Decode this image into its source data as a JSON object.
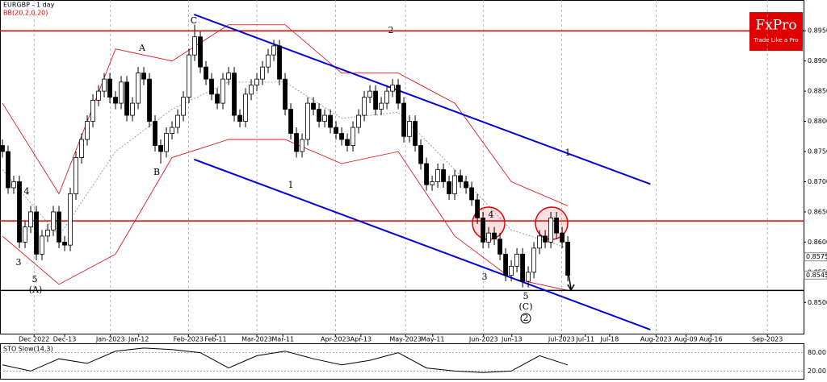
{
  "chart_data": {
    "type": "candlestick",
    "title": "EURGBP - 1 day",
    "subtitle": "BB(20,2,0,20)",
    "ohlc": [
      [
        0.876,
        0.877,
        0.874,
        0.875
      ],
      [
        0.875,
        0.876,
        0.868,
        0.869
      ],
      [
        0.869,
        0.871,
        0.868,
        0.87
      ],
      [
        0.87,
        0.871,
        0.859,
        0.86
      ],
      [
        0.86,
        0.8635,
        0.859,
        0.8625
      ],
      [
        0.8625,
        0.866,
        0.8615,
        0.865
      ],
      [
        0.865,
        0.866,
        0.857,
        0.858
      ],
      [
        0.858,
        0.862,
        0.857,
        0.861
      ],
      [
        0.861,
        0.863,
        0.86,
        0.862
      ],
      [
        0.862,
        0.866,
        0.861,
        0.865
      ],
      [
        0.865,
        0.866,
        0.859,
        0.86
      ],
      [
        0.86,
        0.861,
        0.8585,
        0.8595
      ],
      [
        0.8595,
        0.869,
        0.8585,
        0.868
      ],
      [
        0.868,
        0.875,
        0.867,
        0.874
      ],
      [
        0.874,
        0.878,
        0.873,
        0.877
      ],
      [
        0.877,
        0.881,
        0.876,
        0.88
      ],
      [
        0.88,
        0.8845,
        0.879,
        0.8835
      ],
      [
        0.8835,
        0.886,
        0.8825,
        0.885
      ],
      [
        0.885,
        0.888,
        0.884,
        0.887
      ],
      [
        0.887,
        0.888,
        0.883,
        0.884
      ],
      [
        0.884,
        0.885,
        0.882,
        0.883
      ],
      [
        0.883,
        0.8875,
        0.882,
        0.8865
      ],
      [
        0.8865,
        0.8875,
        0.88,
        0.881
      ],
      [
        0.881,
        0.884,
        0.88,
        0.883
      ],
      [
        0.883,
        0.889,
        0.882,
        0.888
      ],
      [
        0.888,
        0.889,
        0.886,
        0.887
      ],
      [
        0.887,
        0.888,
        0.879,
        0.88
      ],
      [
        0.88,
        0.881,
        0.875,
        0.876
      ],
      [
        0.876,
        0.877,
        0.873,
        0.875
      ],
      [
        0.875,
        0.879,
        0.874,
        0.878
      ],
      [
        0.878,
        0.88,
        0.877,
        0.879
      ],
      [
        0.879,
        0.882,
        0.878,
        0.881
      ],
      [
        0.881,
        0.885,
        0.88,
        0.884
      ],
      [
        0.884,
        0.892,
        0.883,
        0.891
      ],
      [
        0.891,
        0.896,
        0.89,
        0.894
      ],
      [
        0.894,
        0.895,
        0.888,
        0.889
      ],
      [
        0.889,
        0.89,
        0.886,
        0.887
      ],
      [
        0.887,
        0.888,
        0.8835,
        0.8845
      ],
      [
        0.8845,
        0.8855,
        0.882,
        0.883
      ],
      [
        0.883,
        0.888,
        0.882,
        0.887
      ],
      [
        0.887,
        0.889,
        0.886,
        0.888
      ],
      [
        0.888,
        0.889,
        0.88,
        0.881
      ],
      [
        0.881,
        0.882,
        0.879,
        0.88
      ],
      [
        0.88,
        0.8855,
        0.879,
        0.8845
      ],
      [
        0.8845,
        0.887,
        0.8835,
        0.886
      ],
      [
        0.886,
        0.888,
        0.885,
        0.887
      ],
      [
        0.887,
        0.89,
        0.886,
        0.889
      ],
      [
        0.889,
        0.892,
        0.888,
        0.891
      ],
      [
        0.891,
        0.8935,
        0.89,
        0.8925
      ],
      [
        0.8925,
        0.8935,
        0.886,
        0.887
      ],
      [
        0.887,
        0.888,
        0.881,
        0.882
      ],
      [
        0.882,
        0.883,
        0.877,
        0.878
      ],
      [
        0.878,
        0.879,
        0.874,
        0.875
      ],
      [
        0.875,
        0.878,
        0.874,
        0.877
      ],
      [
        0.877,
        0.884,
        0.876,
        0.883
      ],
      [
        0.883,
        0.884,
        0.881,
        0.882
      ],
      [
        0.882,
        0.883,
        0.879,
        0.88
      ],
      [
        0.88,
        0.882,
        0.879,
        0.881
      ],
      [
        0.881,
        0.882,
        0.878,
        0.879
      ],
      [
        0.879,
        0.88,
        0.877,
        0.878
      ],
      [
        0.878,
        0.879,
        0.876,
        0.877
      ],
      [
        0.877,
        0.878,
        0.875,
        0.876
      ],
      [
        0.876,
        0.88,
        0.875,
        0.879
      ],
      [
        0.879,
        0.882,
        0.878,
        0.881
      ],
      [
        0.881,
        0.885,
        0.88,
        0.884
      ],
      [
        0.884,
        0.886,
        0.883,
        0.885
      ],
      [
        0.885,
        0.886,
        0.881,
        0.882
      ],
      [
        0.882,
        0.884,
        0.881,
        0.883
      ],
      [
        0.883,
        0.886,
        0.882,
        0.885
      ],
      [
        0.885,
        0.887,
        0.884,
        0.886
      ],
      [
        0.886,
        0.887,
        0.882,
        0.883
      ],
      [
        0.883,
        0.884,
        0.8765,
        0.8775
      ],
      [
        0.8775,
        0.881,
        0.8765,
        0.88
      ],
      [
        0.88,
        0.881,
        0.875,
        0.876
      ],
      [
        0.876,
        0.877,
        0.872,
        0.873
      ],
      [
        0.873,
        0.874,
        0.8685,
        0.8695
      ],
      [
        0.8695,
        0.871,
        0.8685,
        0.87
      ],
      [
        0.87,
        0.873,
        0.869,
        0.872
      ],
      [
        0.872,
        0.873,
        0.869,
        0.87
      ],
      [
        0.87,
        0.871,
        0.867,
        0.868
      ],
      [
        0.868,
        0.872,
        0.867,
        0.871
      ],
      [
        0.871,
        0.872,
        0.869,
        0.87
      ],
      [
        0.87,
        0.871,
        0.868,
        0.869
      ],
      [
        0.869,
        0.87,
        0.866,
        0.867
      ],
      [
        0.867,
        0.868,
        0.863,
        0.864
      ],
      [
        0.864,
        0.865,
        0.859,
        0.86
      ],
      [
        0.86,
        0.8625,
        0.859,
        0.8615
      ],
      [
        0.8615,
        0.8625,
        0.8595,
        0.8605
      ],
      [
        0.8605,
        0.8615,
        0.857,
        0.858
      ],
      [
        0.858,
        0.859,
        0.8535,
        0.8545
      ],
      [
        0.8545,
        0.857,
        0.8535,
        0.856
      ],
      [
        0.856,
        0.859,
        0.855,
        0.858
      ],
      [
        0.858,
        0.859,
        0.8525,
        0.8535
      ],
      [
        0.8535,
        0.856,
        0.8525,
        0.855
      ],
      [
        0.855,
        0.86,
        0.854,
        0.859
      ],
      [
        0.859,
        0.862,
        0.858,
        0.861
      ],
      [
        0.861,
        0.862,
        0.859,
        0.86
      ],
      [
        0.86,
        0.865,
        0.859,
        0.864
      ],
      [
        0.864,
        0.865,
        0.8605,
        0.8615
      ],
      [
        0.8615,
        0.8625,
        0.859,
        0.86
      ],
      [
        0.86,
        0.861,
        0.8535,
        0.8545
      ]
    ],
    "bands": {
      "x": [
        0,
        10,
        20,
        30,
        40,
        50,
        60,
        70,
        80,
        90,
        100
      ],
      "upper": [
        0.883,
        0.868,
        0.892,
        0.89,
        0.896,
        0.896,
        0.888,
        0.888,
        0.883,
        0.87,
        0.866
      ],
      "middle": [
        0.872,
        0.861,
        0.875,
        0.882,
        0.8865,
        0.8865,
        0.8805,
        0.8815,
        0.872,
        0.862,
        0.859
      ],
      "lower": [
        0.861,
        0.853,
        0.858,
        0.874,
        0.877,
        0.877,
        0.873,
        0.875,
        0.861,
        0.854,
        0.852
      ]
    },
    "levels": [
      {
        "value": 0.895,
        "color": "#e00000"
      },
      {
        "value": 0.8635,
        "color": "#e00000"
      },
      {
        "value": 0.852,
        "color": "#000000"
      }
    ],
    "channel": {
      "color": "#0000e0",
      "lines": [
        [
          33.9,
          0.8977,
          114.6,
          0.8696
        ],
        [
          33.9,
          0.8737,
          114.6,
          0.8455
        ]
      ]
    },
    "price_labels": [
      0.85755,
      0.85454
    ],
    "annotations": [
      "C",
      "A",
      "B",
      "1",
      "2",
      "3",
      "4",
      "5",
      "(A)",
      "4",
      "3",
      "5",
      "(C)",
      "2",
      "1"
    ],
    "xlim": [
      -0.43,
      141.7
    ],
    "ylim": [
      0.8447,
      0.9001
    ],
    "xticks": [
      {
        "value": 5.6,
        "label": "Dec 2022"
      },
      {
        "value": 11,
        "label": "Dec-13"
      },
      {
        "value": 19.1,
        "label": "Jan-2023"
      },
      {
        "value": 24.1,
        "label": "Jan-12"
      },
      {
        "value": 32.9,
        "label": "Feb-2023"
      },
      {
        "value": 37.7,
        "label": "Feb-11"
      },
      {
        "value": 45,
        "label": "Mar-2023"
      },
      {
        "value": 49.6,
        "label": "Mar-11"
      },
      {
        "value": 58.9,
        "label": "Apr-2023"
      },
      {
        "value": 63.4,
        "label": "Apr-13"
      },
      {
        "value": 71.3,
        "label": "May-2023"
      },
      {
        "value": 76.1,
        "label": "May-11"
      },
      {
        "value": 85.1,
        "label": "Jun-2023"
      },
      {
        "value": 90.1,
        "label": "Jun-13"
      },
      {
        "value": 98.9,
        "label": "Jul-2023"
      },
      {
        "value": 103.1,
        "label": "Jul-11"
      },
      {
        "value": 107.4,
        "label": "Jul-18"
      },
      {
        "value": 115.6,
        "label": "Aug-2023"
      },
      {
        "value": 120.9,
        "label": "Aug-09"
      },
      {
        "value": 125.3,
        "label": "Aug-16"
      },
      {
        "value": 135.3,
        "label": "Sep-2023"
      }
    ],
    "yticks": [
      {
        "value": 0.895,
        "label": "0.8950"
      },
      {
        "value": 0.89,
        "label": "0.8900"
      },
      {
        "value": 0.885,
        "label": "0.8850"
      },
      {
        "value": 0.88,
        "label": "0.8800"
      },
      {
        "value": 0.875,
        "label": "0.8750"
      },
      {
        "value": 0.87,
        "label": "0.8700"
      },
      {
        "value": 0.865,
        "label": "0.8650"
      },
      {
        "value": 0.86,
        "label": "0.8600"
      },
      {
        "value": 0.855,
        "label": "0.8550"
      },
      {
        "value": 0.85,
        "label": "0.8500"
      }
    ],
    "logo": {
      "name": "FxPro",
      "tagline": "Trade Like a Pro"
    },
    "stochastic": {
      "title": "STO Slow(14,3)",
      "x": [
        0,
        5,
        10,
        15,
        20,
        25,
        30,
        35,
        40,
        45,
        50,
        55,
        60,
        65,
        70,
        75,
        80,
        85,
        90,
        95,
        100
      ],
      "values": [
        40,
        20,
        60,
        45,
        85,
        95,
        90,
        80,
        30,
        70,
        85,
        60,
        40,
        55,
        80,
        30,
        20,
        15,
        20,
        70,
        40
      ],
      "ylim": [
        0,
        100
      ],
      "yticks": [
        {
          "value": 80,
          "label": "80.00"
        },
        {
          "value": 20,
          "label": "20.00"
        }
      ]
    }
  }
}
